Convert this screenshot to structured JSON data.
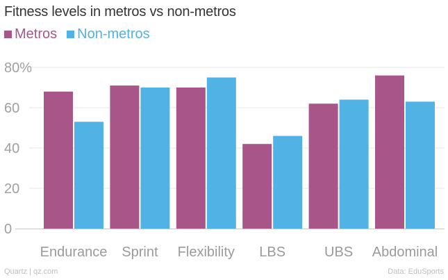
{
  "title": "Fitness levels in metros vs non-metros",
  "legend": [
    {
      "name": "Metros",
      "color": "#A8568A"
    },
    {
      "name": "Non-metros",
      "color": "#51B2E5"
    }
  ],
  "footer": {
    "source_left": "Quartz | qz.com",
    "source_right": "Data: EduSports"
  },
  "chart_data": {
    "type": "bar",
    "title": "Fitness levels in metros vs non-metros",
    "categories": [
      "Endurance",
      "Sprint",
      "Flexibility",
      "LBS",
      "UBS",
      "Abdominal"
    ],
    "series": [
      {
        "name": "Metros",
        "values": [
          68,
          71,
          70,
          42,
          62,
          76
        ]
      },
      {
        "name": "Non-metros",
        "values": [
          53,
          70,
          75,
          46,
          64,
          63
        ]
      }
    ],
    "y_ticks": [
      "0",
      "20",
      "40",
      "60",
      "80%"
    ],
    "ylim": [
      0,
      80
    ],
    "grid": true,
    "xlabel": "",
    "ylabel": "",
    "legend_position": "top-left"
  }
}
